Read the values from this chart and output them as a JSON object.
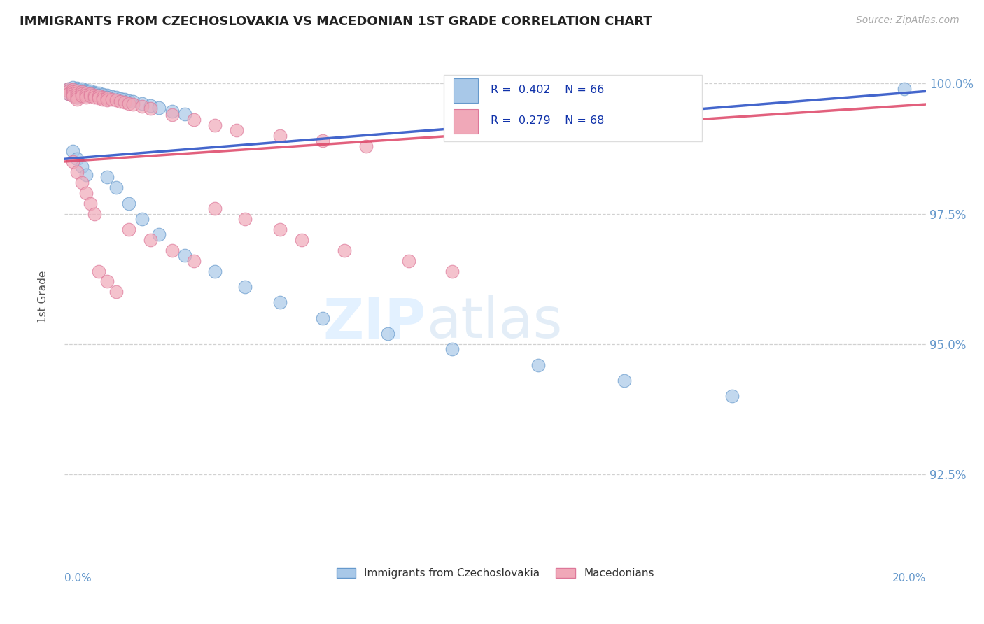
{
  "title": "IMMIGRANTS FROM CZECHOSLOVAKIA VS MACEDONIAN 1ST GRADE CORRELATION CHART",
  "source_text": "Source: ZipAtlas.com",
  "ylabel": "1st Grade",
  "ytick_values": [
    1.0,
    0.975,
    0.95,
    0.925
  ],
  "xlim": [
    0.0,
    0.2
  ],
  "ylim": [
    0.91,
    1.008
  ],
  "legend_label_blue": "Immigrants from Czechoslovakia",
  "legend_label_pink": "Macedonians",
  "blue_color": "#a8c8e8",
  "pink_color": "#f0a8b8",
  "blue_edge": "#6699cc",
  "pink_edge": "#dd7799",
  "trend_blue": "#4466cc",
  "trend_pink": "#dd4466",
  "title_color": "#222222",
  "axis_color": "#6699cc",
  "grid_color": "#cccccc",
  "blue_x": [
    0.001,
    0.001,
    0.001,
    0.002,
    0.002,
    0.002,
    0.002,
    0.002,
    0.003,
    0.003,
    0.003,
    0.003,
    0.003,
    0.003,
    0.003,
    0.004,
    0.004,
    0.004,
    0.004,
    0.005,
    0.005,
    0.005,
    0.005,
    0.006,
    0.006,
    0.006,
    0.007,
    0.007,
    0.008,
    0.008,
    0.009,
    0.009,
    0.01,
    0.01,
    0.011,
    0.012,
    0.013,
    0.014,
    0.015,
    0.016,
    0.018,
    0.02,
    0.022,
    0.025,
    0.028,
    0.01,
    0.012,
    0.015,
    0.018,
    0.022,
    0.028,
    0.035,
    0.042,
    0.05,
    0.06,
    0.075,
    0.09,
    0.11,
    0.13,
    0.155,
    0.002,
    0.003,
    0.004,
    0.005,
    0.195
  ],
  "blue_y": [
    0.999,
    0.9985,
    0.998,
    0.9992,
    0.9988,
    0.9985,
    0.9982,
    0.9978,
    0.9991,
    0.9988,
    0.9985,
    0.9982,
    0.9979,
    0.9976,
    0.9973,
    0.9989,
    0.9986,
    0.9983,
    0.998,
    0.9987,
    0.9984,
    0.9981,
    0.9978,
    0.9985,
    0.9982,
    0.9979,
    0.9983,
    0.998,
    0.9981,
    0.9978,
    0.9979,
    0.9976,
    0.9977,
    0.9974,
    0.9975,
    0.9973,
    0.9971,
    0.9969,
    0.9967,
    0.9965,
    0.9961,
    0.9957,
    0.9953,
    0.9947,
    0.9941,
    0.982,
    0.98,
    0.977,
    0.974,
    0.971,
    0.967,
    0.964,
    0.961,
    0.958,
    0.955,
    0.952,
    0.949,
    0.946,
    0.943,
    0.94,
    0.987,
    0.9855,
    0.984,
    0.9825,
    0.999
  ],
  "pink_x": [
    0.001,
    0.001,
    0.001,
    0.002,
    0.002,
    0.002,
    0.002,
    0.003,
    0.003,
    0.003,
    0.003,
    0.003,
    0.004,
    0.004,
    0.004,
    0.005,
    0.005,
    0.005,
    0.006,
    0.006,
    0.007,
    0.007,
    0.008,
    0.008,
    0.009,
    0.009,
    0.01,
    0.01,
    0.011,
    0.012,
    0.013,
    0.014,
    0.015,
    0.016,
    0.018,
    0.02,
    0.002,
    0.003,
    0.004,
    0.005,
    0.006,
    0.007,
    0.025,
    0.03,
    0.035,
    0.04,
    0.05,
    0.06,
    0.07,
    0.015,
    0.02,
    0.025,
    0.03,
    0.008,
    0.01,
    0.012,
    0.035,
    0.042,
    0.05,
    0.055,
    0.065,
    0.08,
    0.09
  ],
  "pink_y": [
    0.999,
    0.9985,
    0.998,
    0.9988,
    0.9984,
    0.998,
    0.9976,
    0.9986,
    0.9982,
    0.9978,
    0.9974,
    0.997,
    0.9984,
    0.998,
    0.9976,
    0.9982,
    0.9978,
    0.9974,
    0.998,
    0.9976,
    0.9978,
    0.9974,
    0.9976,
    0.9972,
    0.9974,
    0.997,
    0.9972,
    0.9968,
    0.997,
    0.9968,
    0.9966,
    0.9964,
    0.9962,
    0.996,
    0.9956,
    0.9952,
    0.985,
    0.983,
    0.981,
    0.979,
    0.977,
    0.975,
    0.994,
    0.993,
    0.992,
    0.991,
    0.99,
    0.989,
    0.988,
    0.972,
    0.97,
    0.968,
    0.966,
    0.964,
    0.962,
    0.96,
    0.976,
    0.974,
    0.972,
    0.97,
    0.968,
    0.966,
    0.964
  ]
}
